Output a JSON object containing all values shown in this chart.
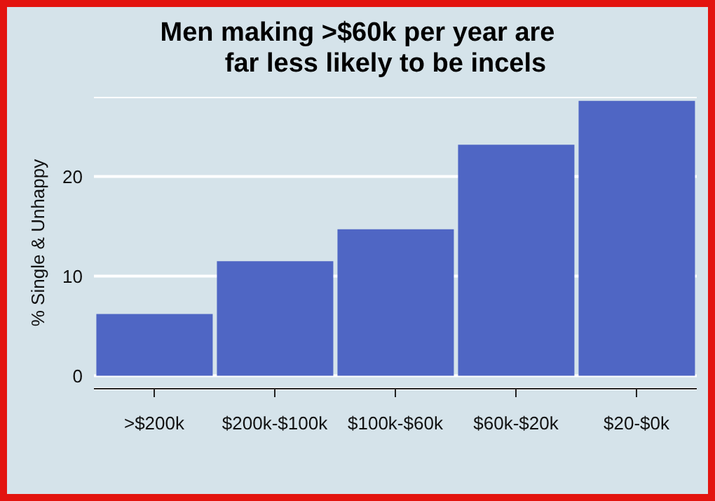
{
  "chart_data": {
    "type": "bar",
    "title": "Men making >$60k per year are\nfar less likely to be incels",
    "ylabel": "% Single & Unhappy",
    "categories": [
      ">$200k",
      "$200k-$100k",
      "$100k-$60k",
      "$60k-$20k",
      "$20-$0k"
    ],
    "values": [
      6.2,
      11.5,
      14.7,
      23.2,
      27.6
    ],
    "color": "#4f66c4",
    "ylim": [
      -1.3,
      28
    ],
    "yticks": [
      0,
      10,
      20
    ],
    "grid": "y"
  }
}
